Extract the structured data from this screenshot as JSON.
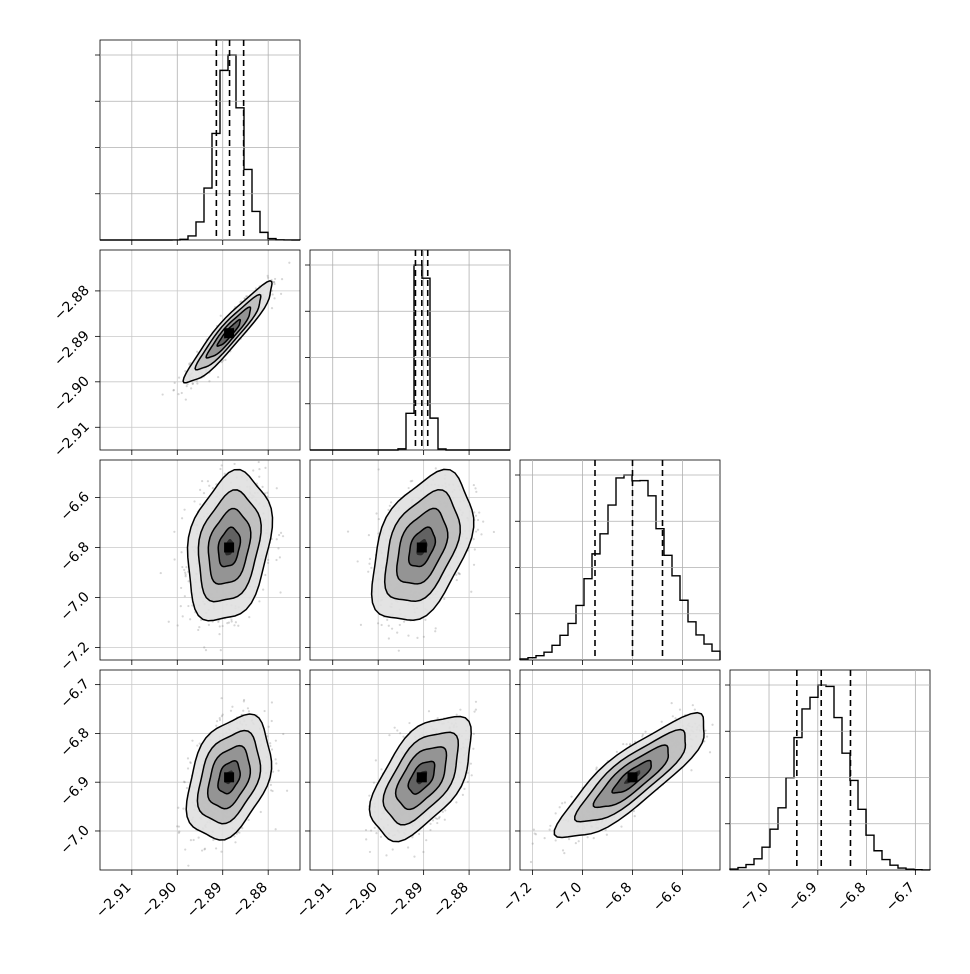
{
  "chart_data": {
    "type": "corner",
    "parameters": [
      {
        "range": [
          -2.917,
          -2.873
        ],
        "ticks": [
          -2.91,
          -2.9,
          -2.89,
          -2.88
        ],
        "tick_labels": [
          "−2.91",
          "−2.90",
          "−2.89",
          "−2.88"
        ],
        "quantiles": [
          -2.8914,
          -2.8885,
          -2.8854
        ]
      },
      {
        "range": [
          -2.915,
          -2.871
        ],
        "ticks": [
          -2.91,
          -2.9,
          -2.89,
          -2.88
        ],
        "tick_labels": [
          "−2.91",
          "−2.90",
          "−2.89",
          "−2.88"
        ],
        "quantiles": [
          -2.8918,
          -2.8904,
          -2.8891
        ]
      },
      {
        "range": [
          -7.25,
          -6.45
        ],
        "ticks": [
          -7.2,
          -7.0,
          -6.8,
          -6.6
        ],
        "tick_labels": [
          "−7.2",
          "−7.0",
          "−6.8",
          "−6.6"
        ],
        "quantiles": [
          -6.95,
          -6.8,
          -6.68
        ]
      },
      {
        "range": [
          -7.08,
          -6.67
        ],
        "ticks": [
          -7.0,
          -6.9,
          -6.8,
          -6.7
        ],
        "tick_labels": [
          "−7.0",
          "−6.9",
          "−6.8",
          "−6.7"
        ],
        "quantiles": [
          -6.943,
          -6.893,
          -6.833
        ]
      }
    ],
    "grid": true,
    "histogram_color": "#000000",
    "contour_color": "#000000",
    "scatter_color": "#8a8a8a",
    "panels_2d": [
      {
        "row": 1,
        "col": 0,
        "center": [
          -2.8886,
          -2.8893
        ],
        "spread": [
          0.0042,
          0.0048
        ],
        "corr": 0.93
      },
      {
        "row": 2,
        "col": 0,
        "center": [
          -2.8886,
          -6.8
        ],
        "spread": [
          0.004,
          0.13
        ],
        "corr": 0.25
      },
      {
        "row": 2,
        "col": 1,
        "center": [
          -2.8904,
          -6.8
        ],
        "spread": [
          0.0048,
          0.13
        ],
        "corr": 0.42
      },
      {
        "row": 3,
        "col": 0,
        "center": [
          -2.8886,
          -6.89
        ],
        "spread": [
          0.004,
          0.055
        ],
        "corr": 0.35
      },
      {
        "row": 3,
        "col": 1,
        "center": [
          -2.8904,
          -6.89
        ],
        "spread": [
          0.0048,
          0.055
        ],
        "corr": 0.55
      },
      {
        "row": 3,
        "col": 2,
        "center": [
          -6.8,
          -6.89
        ],
        "spread": [
          0.13,
          0.055
        ],
        "corr": 0.85
      }
    ]
  }
}
